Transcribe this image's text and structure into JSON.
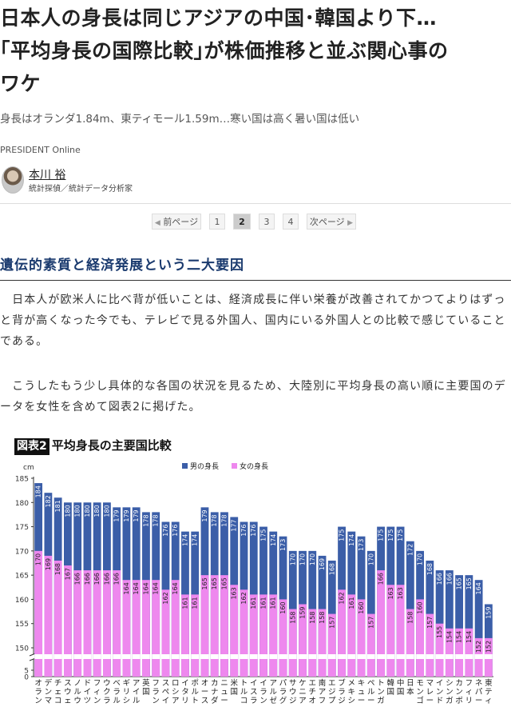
{
  "article": {
    "title_lines": [
      "日本人の身長は同じアジアの中国･韓国より下…",
      "｢平均身長の国際比較｣が株価推移と並ぶ関心事の",
      "ワケ"
    ],
    "subtitle": "身長はオランダ1.84m、東ティモール1.59m…寒い国は高く暑い国は低い",
    "source": "PRESIDENT Online",
    "author_name": "本川 裕",
    "author_role": "統計探偵／統計データ分析家"
  },
  "pager": {
    "prev": "前ページ",
    "pages": [
      "1",
      "2",
      "3",
      "4"
    ],
    "current": "2",
    "next": "次ページ"
  },
  "section": {
    "heading": "遺伝的素質と経済発展という二大要因",
    "paragraph1": "日本人が欧米人に比べ背が低いことは、経済成長に伴い栄養が改善されてかつてよりはずっと背が高くなった今でも、テレビで見る外国人、国内にいる外国人との比較で感じていることである。",
    "paragraph2": "こうしたもう少し具体的な各国の状況を見るため、大陸別に平均身長の高い順に主要国のデータを女性を含めて図表2に掲げた。"
  },
  "figure": {
    "badge": "図表2",
    "title": "平均身長の主要国比較"
  },
  "colors": {
    "male": "#3b5ea8",
    "female": "#ee88ee",
    "heading": "#1a3a6e"
  },
  "chart_data": {
    "type": "bar",
    "ylabel": "cm",
    "ylim": [
      0,
      185
    ],
    "yticks": [
      0,
      5,
      150,
      155,
      160,
      165,
      170,
      175,
      180,
      185
    ],
    "axis_break": true,
    "legend_position": "top",
    "categories": [
      "オランダ",
      "デンマーク",
      "チェコ",
      "スウェーデン",
      "ノルウェー",
      "ドイツ",
      "フィンランド",
      "ウクライナ",
      "ベラルーシ",
      "ギリシャ",
      "アイルランド",
      "英国",
      "フランス",
      "スペイン",
      "ロシア",
      "イタリア",
      "ポルトガル",
      "オーストラリア",
      "カナダ",
      "ニュージーランド",
      "米国",
      "トルコ",
      "イスラエル",
      "イラン",
      "アルゼンチン",
      "パラグアイ",
      "サウジアラビア",
      "ケニア",
      "エチオピア",
      "南アフリカ",
      "エジプト",
      "ブラジル",
      "メキシコ",
      "キューバ",
      "ペルー",
      "トンガ",
      "韓国",
      "中国",
      "日本",
      "モンゴル",
      "マレーシア",
      "インド",
      "シンガポール",
      "カンボジア",
      "フィリピン",
      "ネパール",
      "東ティモール"
    ],
    "series": [
      {
        "name": "男の身長",
        "values": [
          184,
          182,
          181,
          180,
          180,
          180,
          180,
          180,
          179,
          179,
          179,
          178,
          178,
          176,
          176,
          174,
          174,
          179,
          178,
          178,
          177,
          176,
          176,
          175,
          174,
          173,
          170,
          170,
          170,
          169,
          168,
          175,
          174,
          173,
          170,
          175,
          175,
          175,
          172,
          170,
          168,
          166,
          166,
          165,
          165,
          164,
          159
        ]
      },
      {
        "name": "女の身長",
        "values": [
          170,
          169,
          168,
          167,
          166,
          166,
          166,
          166,
          166,
          164,
          164,
          164,
          164,
          162,
          164,
          161,
          161,
          165,
          165,
          165,
          163,
          162,
          161,
          161,
          161,
          160,
          158,
          159,
          158,
          158,
          157,
          162,
          161,
          160,
          157,
          166,
          163,
          163,
          158,
          160,
          157,
          155,
          154,
          154,
          154,
          152,
          152
        ]
      }
    ]
  }
}
